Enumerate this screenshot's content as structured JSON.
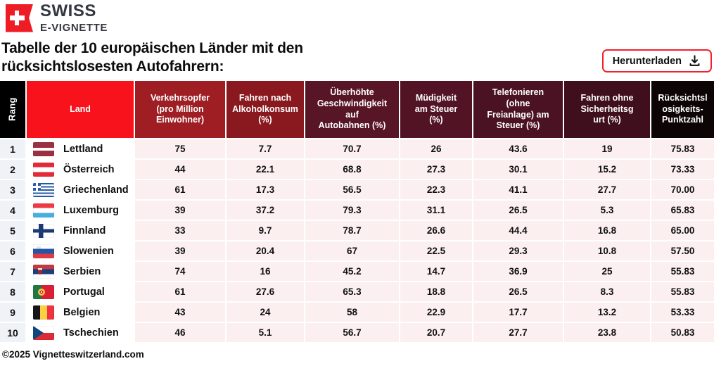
{
  "brand": {
    "line1": "SWISS",
    "line2": "E-VIGNETTE"
  },
  "title": {
    "line1": "Tabelle der 10 europäischen Länder mit den",
    "line2": "rücksichtslosesten Autofahrern:"
  },
  "download_button": {
    "label": "Herunterladen",
    "icon": "download-icon",
    "border_color": "#F2212B"
  },
  "footer": {
    "copyright": "©2025 Vignetteswitzerland.com"
  },
  "colors": {
    "accent_red": "#F8121B",
    "logo_red": "#EE1C25",
    "rank_column_bg": "#EFF2F6",
    "value_cell_bg": "#FBEFF0",
    "header_black": "#0D0406"
  },
  "table": {
    "columns": [
      {
        "key": "rang",
        "label": "Rang",
        "bg": "#000000"
      },
      {
        "key": "land",
        "label": "Land",
        "bg": "#F8121B"
      },
      {
        "key": "verkehrsopfer",
        "label": "Verkehrsopfer\n(pro Million\nEinwohner)",
        "bg": "#9E1E23"
      },
      {
        "key": "alkoholkonsum",
        "label": "Fahren nach\nAlkoholkonsum\n(%)",
        "bg": "#8A191F"
      },
      {
        "key": "geschwindigkeit",
        "label": "Überhöhte\nGeschwindigkeit\nauf\nAutobahnen (%)",
        "bg": "#581526"
      },
      {
        "key": "muedigkeit",
        "label": "Müdigkeit\nam Steuer\n(%)",
        "bg": "#521424"
      },
      {
        "key": "telefonieren",
        "label": "Telefonieren\n(ohne\nFreianlage) am\nSteuer (%)",
        "bg": "#4A1222"
      },
      {
        "key": "sicherheitsgurt",
        "label": "Fahren ohne\nSicherheitsg\nurt (%)",
        "bg": "#400F1E"
      },
      {
        "key": "punktzahl",
        "label": "Rücksichtsl\nosigkeits-\nPunktzahl",
        "bg": "#0D0406"
      }
    ],
    "rows": [
      {
        "rank": "1",
        "country": "Lettland",
        "flag": "latvia",
        "values": [
          "75",
          "7.7",
          "70.7",
          "26",
          "43.6",
          "19",
          "75.83"
        ]
      },
      {
        "rank": "2",
        "country": "Österreich",
        "flag": "austria",
        "values": [
          "44",
          "22.1",
          "68.8",
          "27.3",
          "30.1",
          "15.2",
          "73.33"
        ]
      },
      {
        "rank": "3",
        "country": "Griechenland",
        "flag": "greece",
        "values": [
          "61",
          "17.3",
          "56.5",
          "22.3",
          "41.1",
          "27.7",
          "70.00"
        ]
      },
      {
        "rank": "4",
        "country": "Luxemburg",
        "flag": "luxembourg",
        "values": [
          "39",
          "37.2",
          "79.3",
          "31.1",
          "26.5",
          "5.3",
          "65.83"
        ]
      },
      {
        "rank": "5",
        "country": "Finnland",
        "flag": "finland",
        "values": [
          "33",
          "9.7",
          "78.7",
          "26.6",
          "44.4",
          "16.8",
          "65.00"
        ]
      },
      {
        "rank": "6",
        "country": "Slowenien",
        "flag": "slovenia",
        "values": [
          "39",
          "20.4",
          "67",
          "22.5",
          "29.3",
          "10.8",
          "57.50"
        ]
      },
      {
        "rank": "7",
        "country": "Serbien",
        "flag": "serbia",
        "values": [
          "74",
          "16",
          "45.2",
          "14.7",
          "36.9",
          "25",
          "55.83"
        ]
      },
      {
        "rank": "8",
        "country": "Portugal",
        "flag": "portugal",
        "values": [
          "61",
          "27.6",
          "65.3",
          "18.8",
          "26.5",
          "8.3",
          "55.83"
        ]
      },
      {
        "rank": "9",
        "country": "Belgien",
        "flag": "belgium",
        "values": [
          "43",
          "24",
          "58",
          "22.9",
          "17.7",
          "13.2",
          "53.33"
        ]
      },
      {
        "rank": "10",
        "country": "Tschechien",
        "flag": "czechia",
        "values": [
          "46",
          "5.1",
          "56.7",
          "20.7",
          "27.7",
          "23.8",
          "50.83"
        ]
      }
    ]
  },
  "chart_data": {
    "type": "table",
    "title": "Tabelle der 10 europäischen Länder mit den rücksichtslosesten Autofahrern",
    "columns": [
      "Rang",
      "Land",
      "Verkehrsopfer (pro Million Einwohner)",
      "Fahren nach Alkoholkonsum (%)",
      "Überhöhte Geschwindigkeit auf Autobahnen (%)",
      "Müdigkeit am Steuer (%)",
      "Telefonieren (ohne Freianlage) am Steuer (%)",
      "Fahren ohne Sicherheitsgurt (%)",
      "Rücksichtslosigkeits-Punktzahl"
    ],
    "rows": [
      [
        1,
        "Lettland",
        75,
        7.7,
        70.7,
        26,
        43.6,
        19,
        75.83
      ],
      [
        2,
        "Österreich",
        44,
        22.1,
        68.8,
        27.3,
        30.1,
        15.2,
        73.33
      ],
      [
        3,
        "Griechenland",
        61,
        17.3,
        56.5,
        22.3,
        41.1,
        27.7,
        70.0
      ],
      [
        4,
        "Luxemburg",
        39,
        37.2,
        79.3,
        31.1,
        26.5,
        5.3,
        65.83
      ],
      [
        5,
        "Finnland",
        33,
        9.7,
        78.7,
        26.6,
        44.4,
        16.8,
        65.0
      ],
      [
        6,
        "Slowenien",
        39,
        20.4,
        67,
        22.5,
        29.3,
        10.8,
        57.5
      ],
      [
        7,
        "Serbien",
        74,
        16,
        45.2,
        14.7,
        36.9,
        25,
        55.83
      ],
      [
        8,
        "Portugal",
        61,
        27.6,
        65.3,
        18.8,
        26.5,
        8.3,
        55.83
      ],
      [
        9,
        "Belgien",
        43,
        24,
        58,
        22.9,
        17.7,
        13.2,
        53.33
      ],
      [
        10,
        "Tschechien",
        46,
        5.1,
        56.7,
        20.7,
        27.7,
        23.8,
        50.83
      ]
    ]
  }
}
